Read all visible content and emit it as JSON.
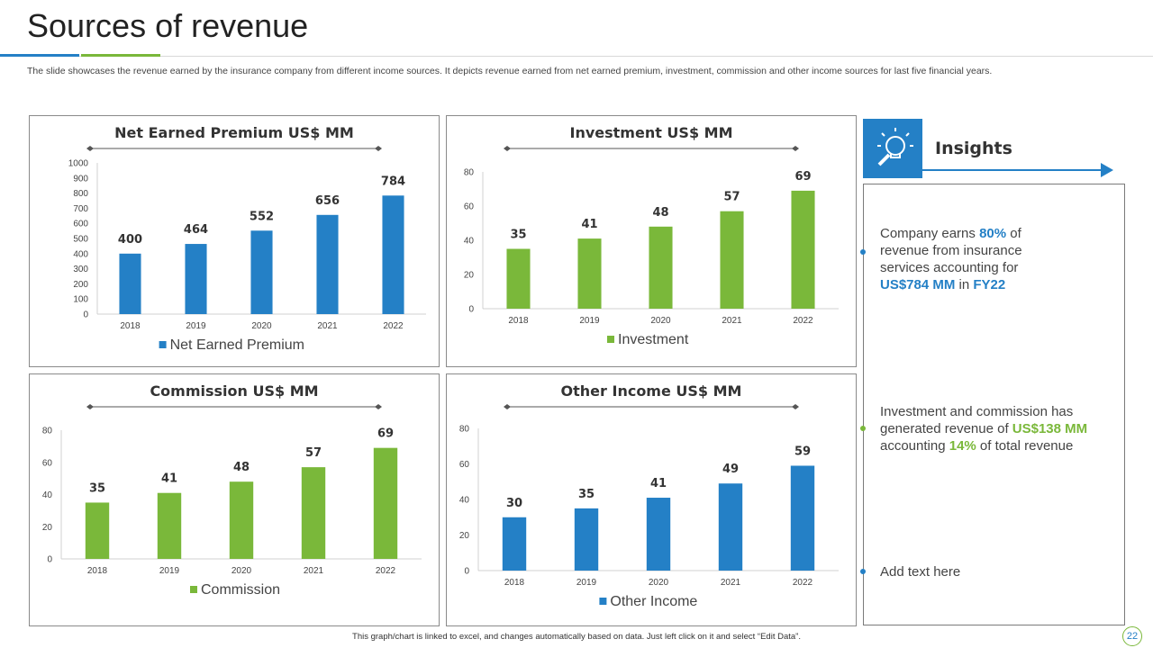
{
  "slide": {
    "title": "Sources of revenue",
    "subtitle": "The slide showcases the revenue earned by the insurance company from different income sources. It depicts revenue earned from net earned premium, investment, commission and other income sources for last five financial years.",
    "footer": "This graph/chart is linked to excel, and changes automatically based on data. Just left click on it and select “Edit Data”.",
    "page_number": "22"
  },
  "colors": {
    "blue": "#2480c6",
    "green": "#7ab83a"
  },
  "chart_data": [
    {
      "type": "bar",
      "title": "Net Earned Premium US$ MM",
      "categories": [
        "2018",
        "2019",
        "2020",
        "2021",
        "2022"
      ],
      "series": [
        {
          "name": "Net Earned Premium",
          "values": [
            400,
            464,
            552,
            656,
            784
          ],
          "color": "#2480c6"
        }
      ],
      "ylim": [
        0,
        1000
      ],
      "yticks": [
        0,
        100,
        200,
        300,
        400,
        500,
        600,
        700,
        800,
        900,
        1000
      ],
      "grid": false,
      "legend": "bottom"
    },
    {
      "type": "bar",
      "title": "Investment US$ MM",
      "categories": [
        "2018",
        "2019",
        "2020",
        "2021",
        "2022"
      ],
      "series": [
        {
          "name": "Investment",
          "values": [
            35,
            41,
            48,
            57,
            69
          ],
          "color": "#7ab83a"
        }
      ],
      "ylim": [
        0,
        80
      ],
      "yticks": [
        0,
        20,
        40,
        60,
        80
      ],
      "grid": false,
      "legend": "bottom"
    },
    {
      "type": "bar",
      "title": "Commission US$ MM",
      "categories": [
        "2018",
        "2019",
        "2020",
        "2021",
        "2022"
      ],
      "series": [
        {
          "name": "Commission",
          "values": [
            35,
            41,
            48,
            57,
            69
          ],
          "color": "#7ab83a"
        }
      ],
      "ylim": [
        0,
        80
      ],
      "yticks": [
        0,
        20,
        40,
        60,
        80
      ],
      "grid": false,
      "legend": "bottom"
    },
    {
      "type": "bar",
      "title": "Other Income US$ MM",
      "categories": [
        "2018",
        "2019",
        "2020",
        "2021",
        "2022"
      ],
      "series": [
        {
          "name": "Other Income",
          "values": [
            30,
            35,
            41,
            49,
            59
          ],
          "color": "#2480c6"
        }
      ],
      "ylim": [
        0,
        80
      ],
      "yticks": [
        0,
        20,
        40,
        60,
        80
      ],
      "grid": false,
      "legend": "bottom"
    }
  ],
  "insights": {
    "title": "Insights",
    "icon": "bulb-magnifier-icon",
    "items": [
      {
        "parts": [
          {
            "text": "Company earns ",
            "style": "plain"
          },
          {
            "text": "80%",
            "style": "blue"
          },
          {
            "text": " of revenue from insurance services accounting for ",
            "style": "plain"
          },
          {
            "text": "US$784 MM",
            "style": "blue"
          },
          {
            "text": " in ",
            "style": "plain"
          },
          {
            "text": "FY22",
            "style": "blue"
          }
        ]
      },
      {
        "parts": [
          {
            "text": "Investment  and commission has generated revenue  of ",
            "style": "plain"
          },
          {
            "text": "US$138 MM",
            "style": "green"
          },
          {
            "text": " accounting  ",
            "style": "plain"
          },
          {
            "text": "14%",
            "style": "green"
          },
          {
            "text": " of total revenue",
            "style": "plain"
          }
        ]
      },
      {
        "parts": [
          {
            "text": "Add text here",
            "style": "plain"
          }
        ]
      }
    ]
  }
}
